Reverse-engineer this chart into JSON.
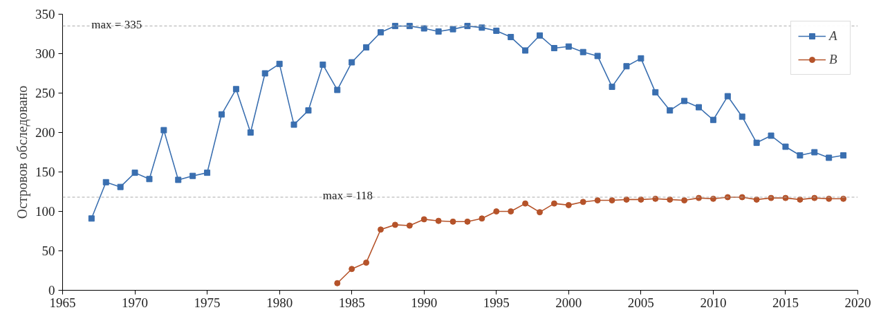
{
  "chart_data": {
    "type": "line",
    "ylabel": "Островов обследовано",
    "xlim": [
      1965,
      2020
    ],
    "xticks": [
      1965,
      1970,
      1975,
      1980,
      1985,
      1990,
      1995,
      2000,
      2005,
      2010,
      2015,
      2020
    ],
    "ylim": [
      0,
      350
    ],
    "yticks": [
      0,
      50,
      100,
      150,
      200,
      250,
      300,
      350
    ],
    "grid": false,
    "legend": "top right",
    "series": [
      {
        "name": "A",
        "color": "#3a6fb0",
        "marker": "square",
        "x": [
          1967,
          1968,
          1969,
          1970,
          1971,
          1972,
          1973,
          1974,
          1975,
          1976,
          1977,
          1978,
          1979,
          1980,
          1981,
          1982,
          1983,
          1984,
          1985,
          1986,
          1987,
          1988,
          1989,
          1990,
          1991,
          1992,
          1993,
          1994,
          1995,
          1996,
          1997,
          1998,
          1999,
          2000,
          2001,
          2002,
          2003,
          2004,
          2005,
          2006,
          2007,
          2008,
          2009,
          2010,
          2011,
          2012,
          2013,
          2014,
          2015,
          2016,
          2017,
          2018,
          2019
        ],
        "values": [
          91,
          137,
          131,
          149,
          141,
          203,
          140,
          145,
          149,
          223,
          255,
          200,
          275,
          287,
          210,
          228,
          286,
          254,
          289,
          308,
          327,
          335,
          335,
          332,
          328,
          331,
          335,
          333,
          329,
          321,
          304,
          323,
          307,
          309,
          302,
          297,
          258,
          284,
          294,
          251,
          228,
          240,
          232,
          216,
          246,
          220,
          187,
          196,
          182,
          171,
          175,
          168,
          171
        ]
      },
      {
        "name": "B",
        "color": "#b5532a",
        "marker": "circle",
        "x": [
          1984,
          1985,
          1986,
          1987,
          1988,
          1989,
          1990,
          1991,
          1992,
          1993,
          1994,
          1995,
          1996,
          1997,
          1998,
          1999,
          2000,
          2001,
          2002,
          2003,
          2004,
          2005,
          2006,
          2007,
          2008,
          2009,
          2010,
          2011,
          2012,
          2013,
          2014,
          2015,
          2016,
          2017,
          2018,
          2019
        ],
        "values": [
          9,
          27,
          35,
          77,
          83,
          82,
          90,
          88,
          87,
          87,
          91,
          100,
          100,
          110,
          99,
          110,
          108,
          112,
          114,
          114,
          115,
          115,
          116,
          115,
          114,
          117,
          116,
          118,
          118,
          115,
          117,
          117,
          115,
          117,
          116,
          116
        ]
      }
    ],
    "ref_lines": [
      {
        "axis": "y",
        "value": 335,
        "color": "#aaaaaa",
        "line_style": "dashed"
      },
      {
        "axis": "y",
        "value": 118,
        "color": "#aaaaaa",
        "line_style": "dashed"
      }
    ],
    "annotations": [
      {
        "text": "max = 335",
        "x": 1967,
        "y": 335
      },
      {
        "text": "max = 118",
        "x": 1983,
        "y": 118
      }
    ]
  }
}
